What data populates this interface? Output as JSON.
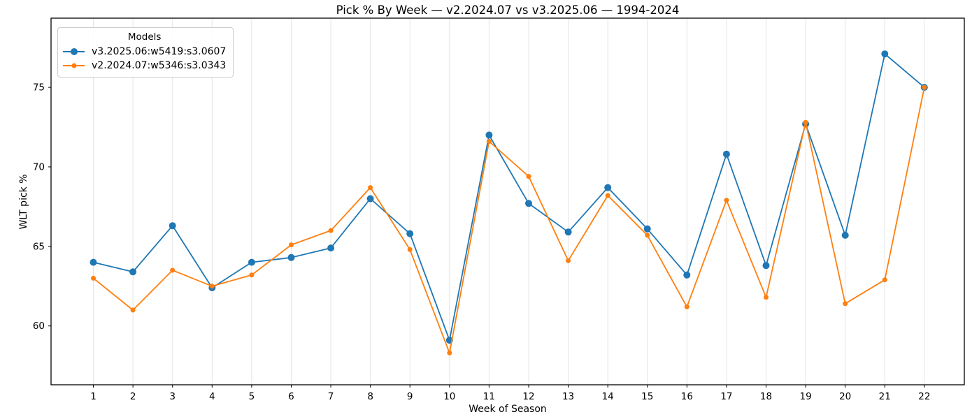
{
  "title": "Pick % By Week — v2.2024.07 vs v3.2025.06 — 1994-2024",
  "chart_data": {
    "type": "line",
    "title": "Pick % By Week — v2.2024.07 vs v3.2025.06 — 1994-2024",
    "xlabel": "Week of Season",
    "ylabel": "WLT pick %",
    "legend_title": "Models",
    "legend_position": "upper left",
    "grid": "vertical",
    "grid_color": "#e4e4e4",
    "x": [
      1,
      2,
      3,
      4,
      5,
      6,
      7,
      8,
      9,
      10,
      11,
      12,
      13,
      14,
      15,
      16,
      17,
      18,
      19,
      20,
      21,
      22
    ],
    "x_ticks": [
      1,
      2,
      3,
      4,
      5,
      6,
      7,
      8,
      9,
      10,
      11,
      12,
      13,
      14,
      15,
      16,
      17,
      18,
      19,
      20,
      21,
      22
    ],
    "y_ticks": [
      60,
      65,
      70,
      75
    ],
    "xlim": [
      -0.07,
      23.01
    ],
    "ylim": [
      56.3,
      79.35
    ],
    "series": [
      {
        "name": "v3.2025.06:w5419:s3.0607",
        "color": "#1f77b4",
        "values": [
          64.0,
          63.4,
          66.3,
          62.4,
          64.0,
          64.3,
          64.9,
          68.0,
          65.8,
          59.1,
          72.0,
          67.7,
          65.9,
          68.7,
          66.1,
          63.2,
          70.8,
          63.8,
          72.7,
          65.7,
          77.1,
          75.0
        ]
      },
      {
        "name": "v2.2024.07:w5346:s3.0343",
        "color": "#ff7f0e",
        "values": [
          63.0,
          61.0,
          63.5,
          62.5,
          63.2,
          65.1,
          66.0,
          68.7,
          64.8,
          58.3,
          71.6,
          69.4,
          64.1,
          68.2,
          65.7,
          61.2,
          67.9,
          61.8,
          72.8,
          61.4,
          62.9,
          75.0
        ]
      }
    ]
  }
}
